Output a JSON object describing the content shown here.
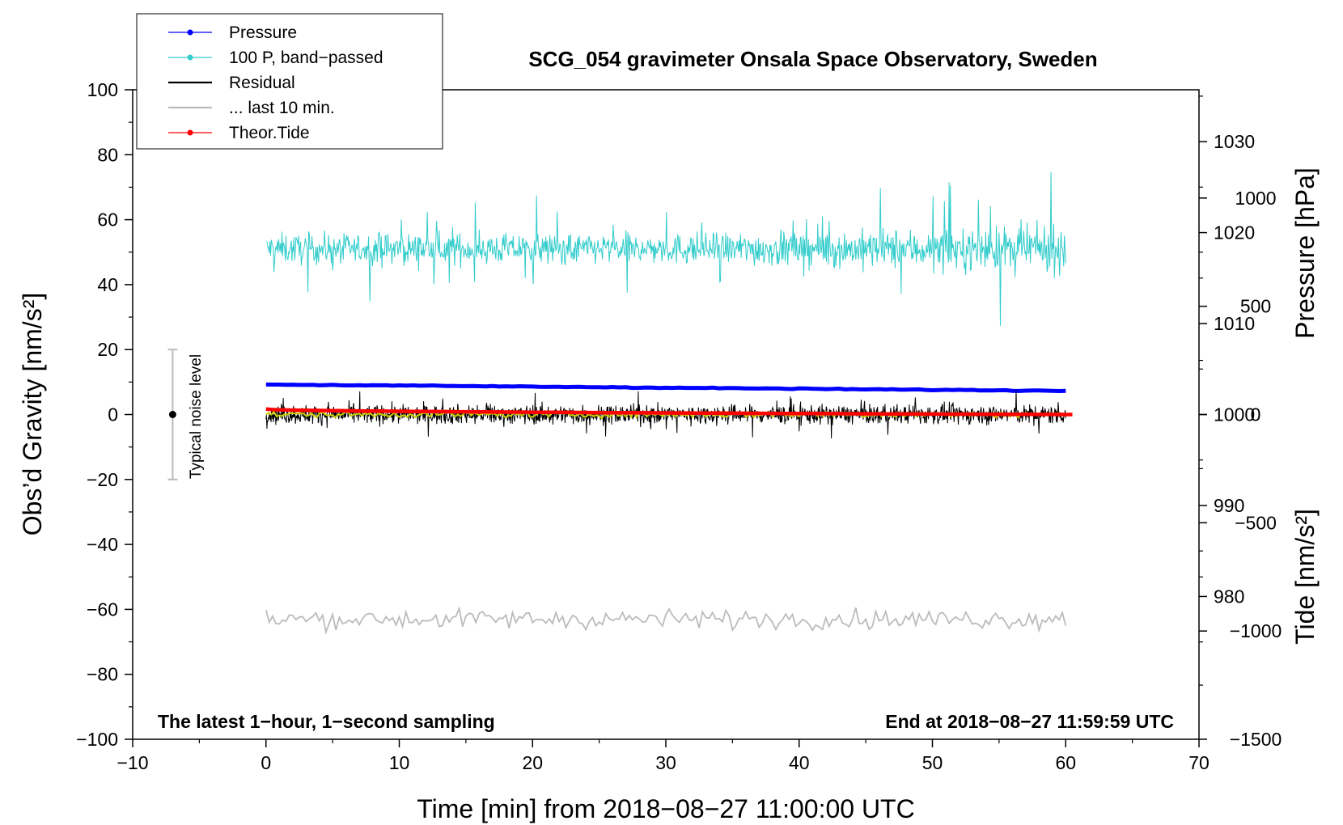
{
  "chart_data": {
    "type": "line",
    "title": "SCG_054 gravimeter Onsala Space Observatory, Sweden",
    "xlabel": "Time [min] from 2018−08−27 11:00:00 UTC",
    "ylabel_left": "Obs’d Gravity [nm/s²]",
    "ylabel_right_top": "Pressure [hPa]",
    "ylabel_right_bottom": "Tide [nm/s²]",
    "xlim": [
      -10,
      70
    ],
    "ylim_left": [
      -100,
      100
    ],
    "ylim_pressure": [
      964.3,
      1035.7
    ],
    "ylim_tide": [
      -1500,
      1500
    ],
    "x_ticks": [
      "−10",
      "0",
      "10",
      "20",
      "30",
      "40",
      "50",
      "60",
      "70"
    ],
    "y_left_ticks": [
      "−100",
      "−80",
      "−60",
      "−40",
      "−20",
      "0",
      "20",
      "40",
      "60",
      "80",
      "100"
    ],
    "pressure_ticks": [
      "980",
      "990",
      "1000",
      "1010",
      "1020",
      "1030"
    ],
    "tide_ticks": [
      "−1500",
      "−1000",
      "−500",
      "0",
      "500",
      "1000"
    ],
    "annotation_left": "The latest 1−hour, 1−second sampling",
    "annotation_right": "End at 2018−08−27 11:59:59 UTC",
    "noise_bar": {
      "label": "Typical noise level",
      "x": -7,
      "center": 0,
      "low": -20,
      "high": 20
    },
    "legend": [
      {
        "label": "Pressure",
        "color": "#0000ff",
        "marker": true
      },
      {
        "label": "100 P, band−passed",
        "color": "#33cccc",
        "marker": true
      },
      {
        "label": "Residual",
        "color": "#000000",
        "marker": false
      },
      {
        "label": "... last 10 min.",
        "color": "#bbbbbb",
        "marker": false
      },
      {
        "label": "Theor.Tide",
        "color": "#ff0000",
        "marker": true
      }
    ],
    "series": [
      {
        "name": "Pressure",
        "color": "#0000ff",
        "axis": "pressure",
        "x_range": [
          0,
          60
        ],
        "start": 1003.3,
        "end": 1002.6
      },
      {
        "name": "100 P, band−passed",
        "color": "#33cccc",
        "axis": "left",
        "x_range": [
          0,
          60
        ],
        "mean": 51,
        "amplitude": 8
      },
      {
        "name": "Residual",
        "color": "#000000",
        "axis": "left",
        "x_range": [
          0,
          60
        ],
        "mean": 0,
        "amplitude": 5
      },
      {
        "name": "Residual smoothed",
        "color": "#cccc00",
        "axis": "left",
        "x_range": [
          0,
          60
        ],
        "mean": 0,
        "amplitude": 1.5
      },
      {
        "name": "... last 10 min.",
        "color": "#bbbbbb",
        "axis": "left",
        "x_range": [
          0,
          60
        ],
        "mean": -63,
        "amplitude": 5
      },
      {
        "name": "Theor.Tide",
        "color": "#ff0000",
        "axis": "tide",
        "x_range": [
          0,
          60.5
        ],
        "start": 25,
        "end": 0
      }
    ]
  }
}
